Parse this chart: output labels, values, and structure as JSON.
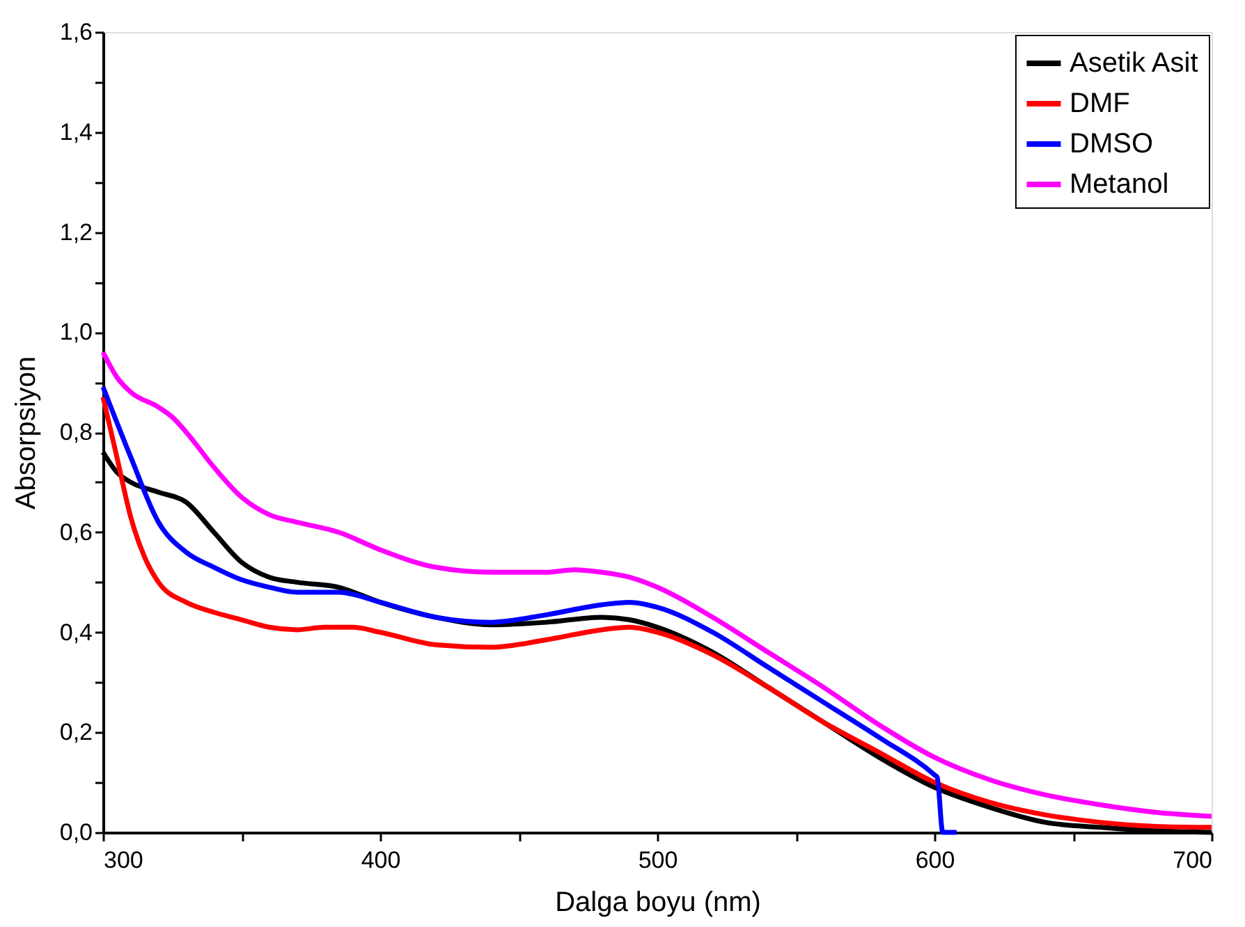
{
  "chart_data": {
    "type": "line",
    "xlabel": "Dalga boyu (nm)",
    "ylabel": "Absorpsiyon",
    "xlim": [
      300,
      700
    ],
    "ylim": [
      0,
      1.6
    ],
    "xticks": [
      300,
      {
        "value": 350,
        "label": null
      },
      400,
      {
        "value": 450,
        "label": null
      },
      500,
      {
        "value": 550,
        "label": null
      },
      600,
      {
        "value": 650,
        "label": null
      },
      700
    ],
    "yticks": [
      {
        "value": 0,
        "label": "0,0"
      },
      {
        "value": 0.1,
        "label": null
      },
      {
        "value": 0.2,
        "label": "0,2"
      },
      {
        "value": 0.3,
        "label": null
      },
      {
        "value": 0.4,
        "label": "0,4"
      },
      {
        "value": 0.5,
        "label": null
      },
      {
        "value": 0.6,
        "label": "0,6"
      },
      {
        "value": 0.7,
        "label": null
      },
      {
        "value": 0.8,
        "label": "0,8"
      },
      {
        "value": 0.9,
        "label": null
      },
      {
        "value": 1.0,
        "label": "1,0"
      },
      {
        "value": 1.1,
        "label": null
      },
      {
        "value": 1.2,
        "label": "1,2"
      },
      {
        "value": 1.3,
        "label": null
      },
      {
        "value": 1.4,
        "label": "1,4"
      },
      {
        "value": 1.5,
        "label": null
      },
      {
        "value": 1.6,
        "label": "1,6"
      }
    ],
    "grid": false,
    "legend": "top right",
    "marker": "none",
    "line_style": "solid",
    "series": [
      {
        "name": "Asetik Asit",
        "color": "#000000",
        "x": [
          300,
          305,
          310,
          320,
          330,
          340,
          350,
          360,
          370,
          385,
          400,
          420,
          440,
          460,
          480,
          490,
          500,
          520,
          540,
          560,
          580,
          600,
          620,
          640,
          660,
          680,
          700
        ],
        "values": [
          0.76,
          0.72,
          0.7,
          0.68,
          0.66,
          0.6,
          0.54,
          0.51,
          0.5,
          0.49,
          0.46,
          0.43,
          0.415,
          0.42,
          0.43,
          0.425,
          0.41,
          0.36,
          0.29,
          0.22,
          0.15,
          0.09,
          0.05,
          0.02,
          0.01,
          0.003,
          0.0
        ]
      },
      {
        "name": "DMF",
        "color": "#ff0000",
        "x": [
          300,
          305,
          310,
          315,
          320,
          330,
          340,
          350,
          360,
          370,
          380,
          390,
          400,
          420,
          440,
          460,
          480,
          490,
          500,
          520,
          540,
          560,
          580,
          600,
          620,
          640,
          660,
          680,
          700
        ],
        "values": [
          0.87,
          0.75,
          0.63,
          0.55,
          0.5,
          0.46,
          0.44,
          0.425,
          0.41,
          0.405,
          0.41,
          0.41,
          0.4,
          0.375,
          0.37,
          0.385,
          0.405,
          0.41,
          0.4,
          0.355,
          0.29,
          0.22,
          0.16,
          0.1,
          0.06,
          0.035,
          0.02,
          0.012,
          0.01
        ]
      },
      {
        "name": "DMSO",
        "color": "#0000ff",
        "x": [
          300,
          310,
          320,
          330,
          340,
          350,
          360,
          370,
          385,
          400,
          420,
          440,
          460,
          480,
          490,
          500,
          520,
          540,
          560,
          580,
          600,
          601,
          603,
          608
        ],
        "values": [
          0.89,
          0.75,
          0.62,
          0.56,
          0.53,
          0.505,
          0.49,
          0.48,
          0.48,
          0.46,
          0.43,
          0.42,
          0.435,
          0.455,
          0.46,
          0.45,
          0.4,
          0.33,
          0.26,
          0.19,
          0.115,
          0.11,
          0.0,
          0.0
        ]
      },
      {
        "name": "Metanol",
        "color": "#ff00ff",
        "x": [
          300,
          305,
          310,
          320,
          325,
          330,
          340,
          350,
          360,
          370,
          385,
          400,
          420,
          440,
          460,
          470,
          480,
          490,
          500,
          520,
          540,
          560,
          580,
          600,
          620,
          640,
          660,
          680,
          700
        ],
        "values": [
          0.96,
          0.91,
          0.88,
          0.85,
          0.83,
          0.8,
          0.73,
          0.67,
          0.635,
          0.62,
          0.6,
          0.565,
          0.53,
          0.52,
          0.52,
          0.525,
          0.52,
          0.51,
          0.49,
          0.43,
          0.36,
          0.29,
          0.215,
          0.15,
          0.105,
          0.075,
          0.055,
          0.04,
          0.032
        ]
      }
    ]
  }
}
